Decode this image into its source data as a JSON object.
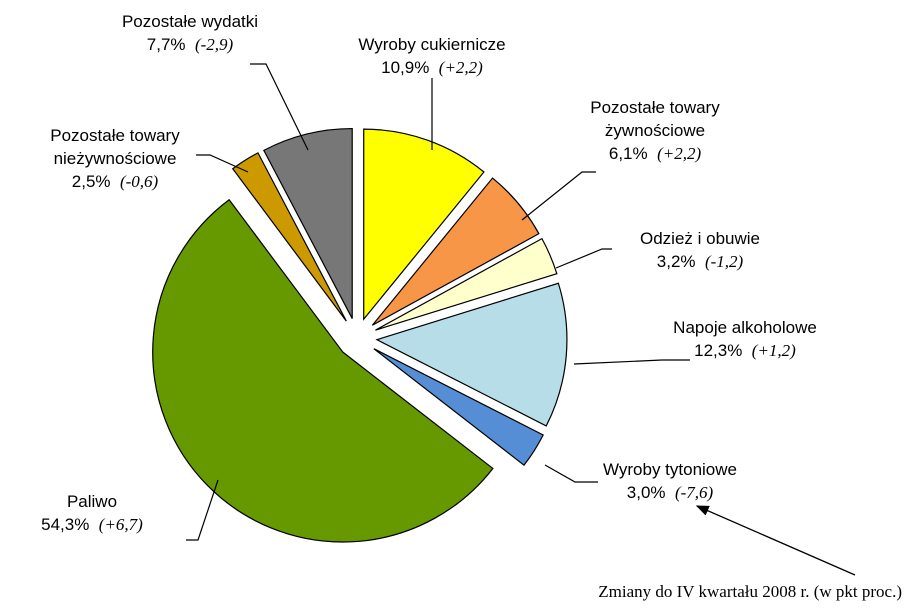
{
  "chart_data": {
    "type": "pie",
    "categories": [
      "Wyroby cukiernicze",
      "Pozostałe towary żywnościowe",
      "Odzież i obuwie",
      "Napoje alkoholowe",
      "Wyroby tytoniowe",
      "Paliwo",
      "Pozostałe towary nieżywnościowe",
      "Pozostałe wydatki"
    ],
    "values": [
      10.9,
      6.1,
      3.2,
      12.3,
      3.0,
      54.3,
      2.5,
      7.7
    ],
    "value_labels": [
      "10,9%",
      "6,1%",
      "3,2%",
      "12,3%",
      "3,0%",
      "54,3%",
      "2,5%",
      "7,7%"
    ],
    "changes": [
      2.2,
      2.2,
      -1.2,
      1.2,
      -7.6,
      6.7,
      -0.6,
      -2.9
    ],
    "change_labels": [
      "(+2,2)",
      "(+2,2)",
      "(-1,2)",
      "(+1,2)",
      "(-7,6)",
      "(+6,7)",
      "(-0,6)",
      "(-2,9)"
    ],
    "colors": [
      "#ffff00",
      "#f79646",
      "#ffffcc",
      "#b7dde8",
      "#558ed5",
      "#669900",
      "#cc9900",
      "#777777"
    ],
    "annotation": "Zmiany do IV kwartału 2008 r. (w pkt proc.)"
  }
}
